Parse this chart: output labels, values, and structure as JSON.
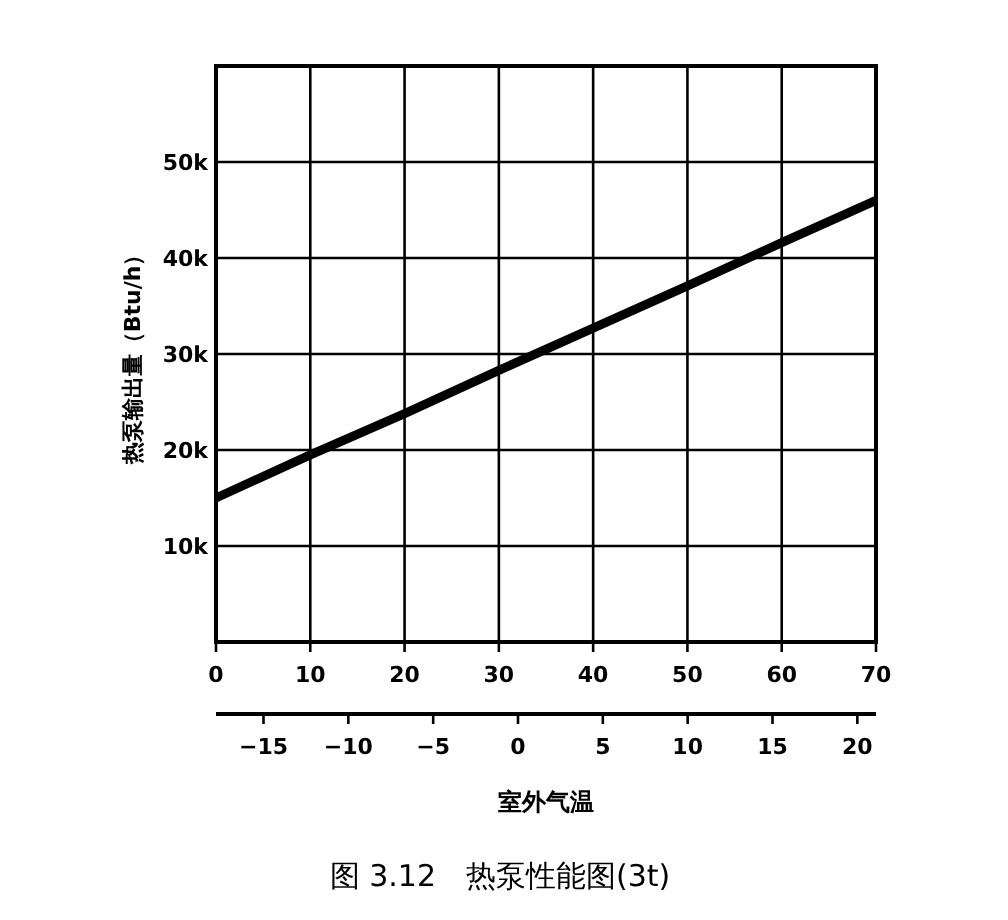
{
  "chart_data": {
    "type": "line",
    "title": "图 3.12　热泵性能图(3t)",
    "xlabel": "室外气温",
    "ylabel": "热泵输出量（Btu/h）",
    "x": [
      0,
      10,
      20,
      30,
      40,
      50,
      60,
      70
    ],
    "series": [
      {
        "color": "#000000",
        "values": [
          15000,
          19500,
          23800,
          28300,
          32700,
          37100,
          41600,
          46000
        ]
      }
    ],
    "xlim": [
      0,
      70
    ],
    "xticks": [
      0,
      10,
      20,
      30,
      40,
      50,
      60,
      70
    ],
    "ylim": [
      0,
      60000
    ],
    "yticks": [
      {
        "value": 0,
        "label": null
      },
      {
        "value": 10000,
        "label": "10k"
      },
      {
        "value": 20000,
        "label": "20k"
      },
      {
        "value": 30000,
        "label": "30k"
      },
      {
        "value": 40000,
        "label": "40k"
      },
      {
        "value": 50000,
        "label": "50k"
      },
      {
        "value": 60000,
        "label": null
      }
    ],
    "x2lim": [
      -17.8,
      21.1
    ],
    "x2ticks": [
      -15,
      -10,
      -5,
      0,
      5,
      10,
      15,
      20
    ],
    "grid": true,
    "marker": "none",
    "line_style": "solid"
  }
}
